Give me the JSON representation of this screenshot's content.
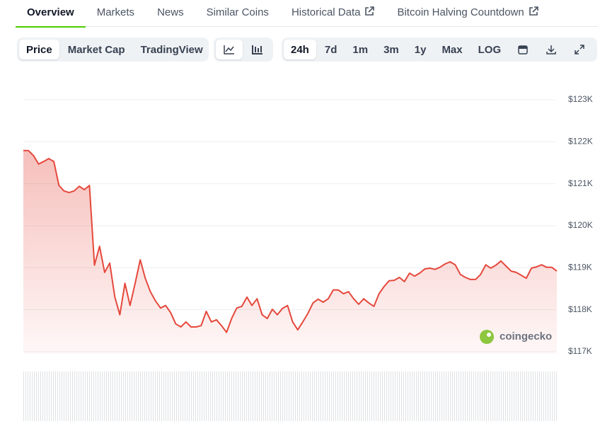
{
  "tabs": [
    "Overview",
    "Markets",
    "News",
    "Similar Coins",
    "Historical Data",
    "Bitcoin Halving Countdown"
  ],
  "view_buttons": [
    "Price",
    "Market Cap",
    "TradingView"
  ],
  "range_buttons": [
    "24h",
    "7d",
    "1m",
    "3m",
    "1y",
    "Max",
    "LOG"
  ],
  "watermark": "coingecko",
  "chart_data": {
    "type": "area",
    "color": "#e5483c",
    "values": [
      121.79,
      121.79,
      121.67,
      121.47,
      121.53,
      121.6,
      121.53,
      120.96,
      120.83,
      120.79,
      120.83,
      120.94,
      120.86,
      120.96,
      119.06,
      119.51,
      118.89,
      119.11,
      118.3,
      117.88,
      118.63,
      118.1,
      118.63,
      119.19,
      118.75,
      118.43,
      118.21,
      118.04,
      118.1,
      117.93,
      117.66,
      117.59,
      117.71,
      117.59,
      117.59,
      117.62,
      117.96,
      117.71,
      117.76,
      117.62,
      117.46,
      117.79,
      118.04,
      118.08,
      118.3,
      118.1,
      118.26,
      117.88,
      117.79,
      118.01,
      117.88,
      118.03,
      118.1,
      117.71,
      117.52,
      117.71,
      117.91,
      118.16,
      118.25,
      118.18,
      118.26,
      118.47,
      118.47,
      118.38,
      118.43,
      118.26,
      118.13,
      118.26,
      118.16,
      118.08,
      118.38,
      118.55,
      118.69,
      118.7,
      118.77,
      118.67,
      118.87,
      118.8,
      118.87,
      118.97,
      118.99,
      118.96,
      119.01,
      119.09,
      119.14,
      119.07,
      118.84,
      118.77,
      118.72,
      118.72,
      118.84,
      119.07,
      118.99,
      119.06,
      119.16,
      119.04,
      118.92,
      118.89,
      118.82,
      118.75,
      118.99,
      119.02,
      119.07,
      119.01,
      119.01,
      118.92
    ],
    "ylim": [
      117,
      123
    ],
    "yticks": [
      {
        "value": 117,
        "label": "$117K"
      },
      {
        "value": 118,
        "label": "$118K"
      },
      {
        "value": 119,
        "label": "$119K"
      },
      {
        "value": 120,
        "label": "$120K"
      },
      {
        "value": 121,
        "label": "$121K"
      },
      {
        "value": 122,
        "label": "$122K"
      },
      {
        "value": 123,
        "label": "$123K"
      }
    ],
    "grid": true
  }
}
